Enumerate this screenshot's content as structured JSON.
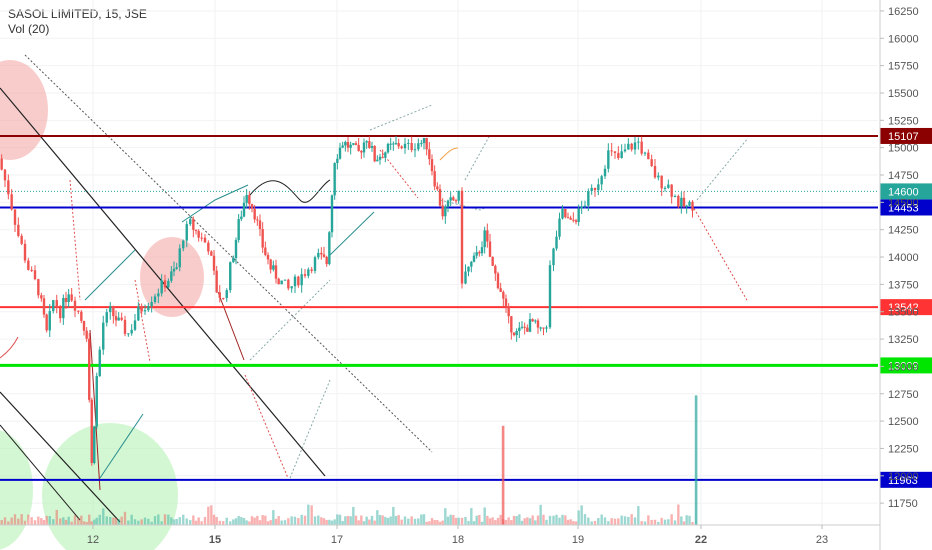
{
  "header": {
    "title": "SASOL LIMITED, 15, JSE",
    "indicator": "Vol (20)"
  },
  "colors": {
    "up": "#26a69a",
    "down": "#ef5350",
    "resistance_top": "#8b0000",
    "blue_level": "#0000cc",
    "green_level": "#00e600",
    "red_level": "#ff3333",
    "current_price": "#26a69a"
  },
  "chart_data": {
    "type": "candlestick",
    "title": "SASOL LIMITED, 15, JSE",
    "ylim": [
      11550,
      16350
    ],
    "y_ticks": [
      11750,
      12000,
      12250,
      12500,
      12750,
      13000,
      13250,
      13500,
      13750,
      14000,
      14250,
      14500,
      14750,
      15000,
      15250,
      15500,
      15750,
      16000,
      16250
    ],
    "x_ticks": [
      {
        "label": "12",
        "bold": false
      },
      {
        "label": "15",
        "bold": true
      },
      {
        "label": "17",
        "bold": false
      },
      {
        "label": "18",
        "bold": false
      },
      {
        "label": "19",
        "bold": false
      },
      {
        "label": "22",
        "bold": true
      },
      {
        "label": "23",
        "bold": false
      }
    ],
    "levels": [
      {
        "price": 15107,
        "label": "15107",
        "color": "#8b0000"
      },
      {
        "price": 14600,
        "label": "14600",
        "color": "#26a69a",
        "dotted": true
      },
      {
        "price": 14453,
        "label": "14453",
        "color": "#0000cc"
      },
      {
        "price": 13542,
        "label": "13542",
        "color": "#ff3333"
      },
      {
        "price": 13009,
        "label": "13009",
        "color": "#00e600"
      },
      {
        "price": 11963,
        "label": "11963",
        "color": "#0000cc"
      }
    ],
    "price_path": [
      [
        0,
        14900
      ],
      [
        10,
        14600
      ],
      [
        20,
        14200
      ],
      [
        30,
        13900
      ],
      [
        40,
        13700
      ],
      [
        48,
        13300
      ],
      [
        55,
        13600
      ],
      [
        62,
        13500
      ],
      [
        70,
        13700
      ],
      [
        80,
        13500
      ],
      [
        88,
        13300
      ],
      [
        93,
        12100
      ],
      [
        98,
        12900
      ],
      [
        105,
        13400
      ],
      [
        112,
        13500
      ],
      [
        120,
        13400
      ],
      [
        130,
        13300
      ],
      [
        140,
        13500
      ],
      [
        150,
        13600
      ],
      [
        160,
        13700
      ],
      [
        170,
        13800
      ],
      [
        178,
        13900
      ],
      [
        185,
        14200
      ],
      [
        192,
        14300
      ],
      [
        200,
        14200
      ],
      [
        210,
        14100
      ],
      [
        218,
        13700
      ],
      [
        225,
        13600
      ],
      [
        232,
        13900
      ],
      [
        240,
        14300
      ],
      [
        248,
        14600
      ],
      [
        256,
        14400
      ],
      [
        264,
        14100
      ],
      [
        272,
        13900
      ],
      [
        280,
        13800
      ],
      [
        290,
        13700
      ],
      [
        300,
        13800
      ],
      [
        310,
        13900
      ],
      [
        320,
        14000
      ],
      [
        328,
        13950
      ],
      [
        336,
        14900
      ],
      [
        344,
        15050
      ],
      [
        352,
        15000
      ],
      [
        360,
        14950
      ],
      [
        368,
        15100
      ],
      [
        376,
        14900
      ],
      [
        384,
        14950
      ],
      [
        392,
        15000
      ],
      [
        400,
        15030
      ],
      [
        410,
        15000
      ],
      [
        420,
        15050
      ],
      [
        428,
        15030
      ],
      [
        436,
        14700
      ],
      [
        444,
        14400
      ],
      [
        452,
        14500
      ],
      [
        460,
        14550
      ],
      [
        464,
        13800
      ],
      [
        470,
        13900
      ],
      [
        478,
        14000
      ],
      [
        486,
        14200
      ],
      [
        494,
        13900
      ],
      [
        502,
        13700
      ],
      [
        510,
        13400
      ],
      [
        518,
        13300
      ],
      [
        526,
        13350
      ],
      [
        534,
        13400
      ],
      [
        542,
        13300
      ],
      [
        548,
        13400
      ],
      [
        552,
        13900
      ],
      [
        558,
        14200
      ],
      [
        564,
        14400
      ],
      [
        572,
        14300
      ],
      [
        580,
        14400
      ],
      [
        590,
        14550
      ],
      [
        600,
        14700
      ],
      [
        610,
        14950
      ],
      [
        620,
        14900
      ],
      [
        630,
        15000
      ],
      [
        640,
        15050
      ],
      [
        650,
        14850
      ],
      [
        660,
        14700
      ],
      [
        670,
        14650
      ],
      [
        680,
        14500
      ],
      [
        688,
        14450
      ],
      [
        694,
        14480
      ]
    ],
    "volume_spikes": [
      {
        "x": 503,
        "value": 0.62,
        "color": "#ef5350"
      },
      {
        "x": 696,
        "value": 0.81,
        "color": "#26a69a"
      }
    ]
  }
}
